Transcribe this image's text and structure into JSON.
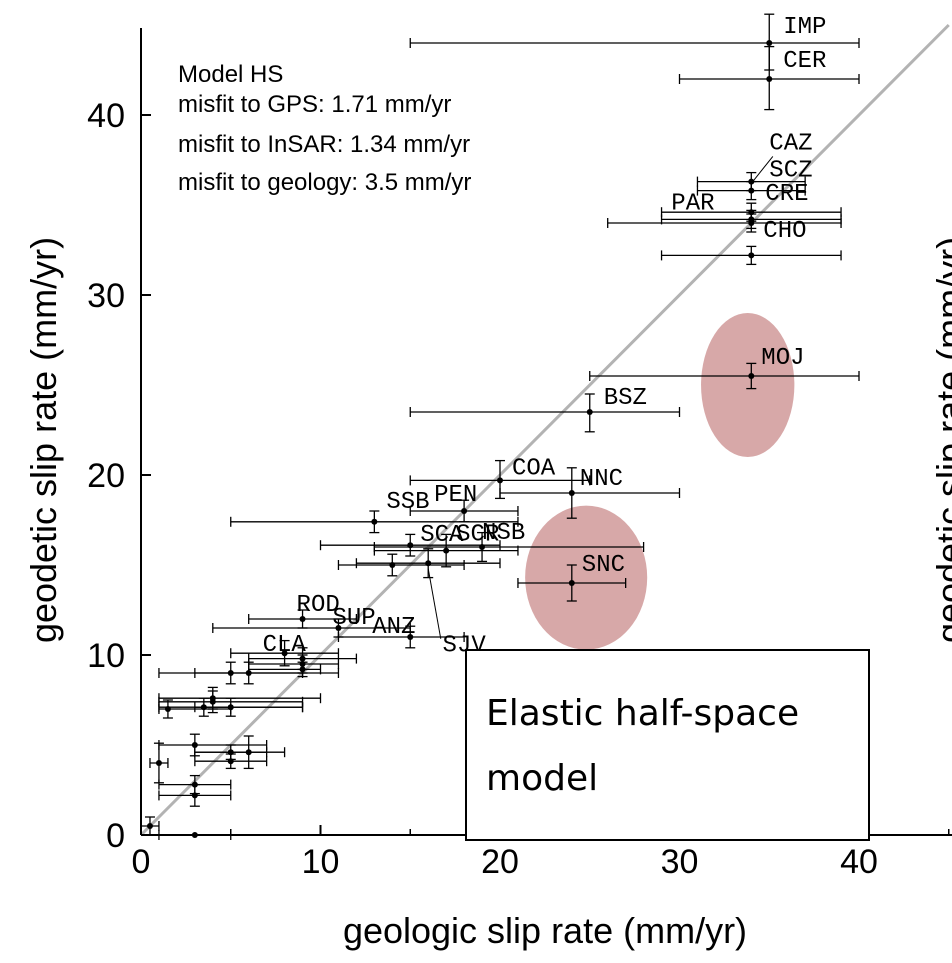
{
  "chart_data": {
    "type": "scatter",
    "xlabel": "geologic slip rate (mm/yr)",
    "ylabel": "geodetic slip rate (mm/yr)",
    "ylabel_clipped": "geodetic slip rate (mm/yr)",
    "xlim": [
      0,
      45
    ],
    "ylim": [
      0,
      45
    ],
    "xticks": [
      0,
      10,
      20,
      30,
      40
    ],
    "yticks": [
      0,
      10,
      20,
      30,
      40
    ],
    "xtick_labels": [
      "0",
      "10",
      "20",
      "30",
      "40"
    ],
    "ytick_labels": [
      "0",
      "10",
      "20",
      "30",
      "40"
    ],
    "reference_line": "y = x",
    "info_lines": [
      "Model HS",
      "misfit to GPS: 1.71 mm/yr",
      "misfit to InSAR: 1.34 mm/yr",
      "misfit to geology:  3.5 mm/yr"
    ],
    "box_lines": [
      "Elastic half-space",
      "model"
    ],
    "highlight_color": "#c98b8b",
    "highlights": [
      {
        "x": 33.8,
        "y": 25.0,
        "rx": 2.6,
        "ry": 4.0
      },
      {
        "x": 24.8,
        "y": 14.3,
        "rx": 3.4,
        "ry": 4.0
      }
    ],
    "points": [
      {
        "x": 35,
        "y": 44,
        "xlo": 15,
        "xhi": 40,
        "ylo": 42.5,
        "yhi": 45.6,
        "label": "IMP"
      },
      {
        "x": 35,
        "y": 42,
        "xlo": 30,
        "xhi": 40,
        "ylo": 40.3,
        "yhi": 43.8,
        "label": "CER"
      },
      {
        "x": 34,
        "y": 36.3,
        "xlo": 31,
        "xhi": 37,
        "ylo": 35.8,
        "yhi": 36.8,
        "label": "CAZ"
      },
      {
        "x": 34,
        "y": 35.8,
        "xlo": 31,
        "xhi": 37,
        "ylo": 35.3,
        "yhi": 36.3,
        "label": "SCZ"
      },
      {
        "x": 34,
        "y": 34.6,
        "xlo": 29,
        "xhi": 39,
        "ylo": 34.1,
        "yhi": 35.1,
        "label": "CRE"
      },
      {
        "x": 34,
        "y": 34.2,
        "xlo": 29,
        "xhi": 39,
        "ylo": 33.7,
        "yhi": 34.7,
        "label": "PAR"
      },
      {
        "x": 34,
        "y": 34.0,
        "xlo": 26,
        "xhi": 39,
        "ylo": 33.5,
        "yhi": 34.5,
        "label": "CHO"
      },
      {
        "x": 34,
        "y": 32.2,
        "xlo": 29,
        "xhi": 39,
        "ylo": 31.7,
        "yhi": 32.7,
        "label": ""
      },
      {
        "x": 34,
        "y": 25.5,
        "xlo": 25,
        "xhi": 40,
        "ylo": 24.8,
        "yhi": 26.2,
        "label": "MOJ"
      },
      {
        "x": 25,
        "y": 23.5,
        "xlo": 15,
        "xhi": 30,
        "ylo": 22.4,
        "yhi": 24.5,
        "label": "BSZ"
      },
      {
        "x": 20,
        "y": 19.7,
        "xlo": 15,
        "xhi": 25,
        "ylo": 18.7,
        "yhi": 20.8,
        "label": "COA"
      },
      {
        "x": 24,
        "y": 19.0,
        "xlo": 20,
        "xhi": 30,
        "ylo": 17.6,
        "yhi": 20.4,
        "label": "NNC"
      },
      {
        "x": 18,
        "y": 18.0,
        "xlo": 15,
        "xhi": 21,
        "ylo": 17.4,
        "yhi": 18.6,
        "label": "PEN"
      },
      {
        "x": 13,
        "y": 17.4,
        "xlo": 5,
        "xhi": 21,
        "ylo": 16.8,
        "yhi": 18.0,
        "label": "SSB"
      },
      {
        "x": 15,
        "y": 16.1,
        "xlo": 10,
        "xhi": 20,
        "ylo": 15.5,
        "yhi": 16.7,
        "label": "SCA"
      },
      {
        "x": 19,
        "y": 16.0,
        "xlo": 13,
        "xhi": 28,
        "ylo": 15.2,
        "yhi": 16.8,
        "label": "NSB"
      },
      {
        "x": 17,
        "y": 15.8,
        "xlo": 13,
        "xhi": 21,
        "ylo": 14.9,
        "yhi": 16.7,
        "label": "SCR"
      },
      {
        "x": 24,
        "y": 14.0,
        "xlo": 21,
        "xhi": 27,
        "ylo": 13.0,
        "yhi": 15.0,
        "label": "SNC"
      },
      {
        "x": 14,
        "y": 15.0,
        "xlo": 11,
        "xhi": 18,
        "ylo": 14.4,
        "yhi": 15.6,
        "label": ""
      },
      {
        "x": 16,
        "y": 15.1,
        "xlo": 12,
        "xhi": 20,
        "ylo": 14.3,
        "yhi": 15.9,
        "label": ""
      },
      {
        "x": 9,
        "y": 12.0,
        "xlo": 6,
        "xhi": 12,
        "ylo": 11.5,
        "yhi": 12.5,
        "label": "ROD"
      },
      {
        "x": 11,
        "y": 11.5,
        "xlo": 4,
        "xhi": 15,
        "ylo": 11.0,
        "yhi": 12.0,
        "label": "SUP"
      },
      {
        "x": 15,
        "y": 11.0,
        "xlo": 11,
        "xhi": 18,
        "ylo": 10.4,
        "yhi": 11.6,
        "label": "ANZ"
      },
      {
        "x": 8,
        "y": 10.1,
        "xlo": 5,
        "xhi": 11,
        "ylo": 9.4,
        "yhi": 10.8,
        "label": "CLA"
      },
      {
        "x": 9,
        "y": 9.8,
        "xlo": 6,
        "xhi": 12,
        "ylo": 9.2,
        "yhi": 10.4,
        "label": ""
      },
      {
        "x": 9,
        "y": 9.5,
        "xlo": 6,
        "xhi": 11,
        "ylo": 9.0,
        "yhi": 10.0,
        "label": ""
      },
      {
        "x": 9,
        "y": 9.2,
        "xlo": 6,
        "xhi": 10,
        "ylo": 8.8,
        "yhi": 9.6,
        "label": ""
      },
      {
        "x": 6,
        "y": 9.0,
        "xlo": 1,
        "xhi": 11,
        "ylo": 8.4,
        "yhi": 9.6,
        "label": ""
      },
      {
        "x": 5,
        "y": 9.0,
        "xlo": 3,
        "xhi": 9,
        "ylo": 8.4,
        "yhi": 9.6,
        "label": ""
      },
      {
        "x": 4,
        "y": 7.6,
        "xlo": 1,
        "xhi": 10,
        "ylo": 7.0,
        "yhi": 8.2,
        "label": ""
      },
      {
        "x": 4,
        "y": 7.4,
        "xlo": 1,
        "xhi": 9,
        "ylo": 6.8,
        "yhi": 8.0,
        "label": ""
      },
      {
        "x": 3.5,
        "y": 7.1,
        "xlo": 1,
        "xhi": 9,
        "ylo": 6.6,
        "yhi": 7.6,
        "label": ""
      },
      {
        "x": 5,
        "y": 7.1,
        "xlo": 3,
        "xhi": 9,
        "ylo": 6.6,
        "yhi": 7.6,
        "label": ""
      },
      {
        "x": 1.5,
        "y": 7.0,
        "xlo": 1,
        "xhi": 5,
        "ylo": 6.5,
        "yhi": 7.5,
        "label": ""
      },
      {
        "x": 3,
        "y": 5.0,
        "xlo": 1,
        "xhi": 7,
        "ylo": 4.4,
        "yhi": 5.6,
        "label": ""
      },
      {
        "x": 5,
        "y": 4.6,
        "xlo": 3,
        "xhi": 7,
        "ylo": 4.2,
        "yhi": 5.0,
        "label": ""
      },
      {
        "x": 6,
        "y": 4.6,
        "xlo": 3,
        "xhi": 8,
        "ylo": 3.7,
        "yhi": 5.5,
        "label": ""
      },
      {
        "x": 5,
        "y": 4.1,
        "xlo": 3,
        "xhi": 7,
        "ylo": 3.7,
        "yhi": 4.5,
        "label": ""
      },
      {
        "x": 1,
        "y": 4.0,
        "xlo": 0.5,
        "xhi": 1.5,
        "ylo": 2.9,
        "yhi": 5.1,
        "label": ""
      },
      {
        "x": 3,
        "y": 2.8,
        "xlo": 1,
        "xhi": 5,
        "ylo": 2.3,
        "yhi": 3.3,
        "label": ""
      },
      {
        "x": 3,
        "y": 2.2,
        "xlo": 1,
        "xhi": 5,
        "ylo": 1.6,
        "yhi": 2.8,
        "label": ""
      },
      {
        "x": 0.5,
        "y": 0.5,
        "xlo": 0,
        "xhi": 1,
        "ylo": 0,
        "yhi": 1,
        "label": ""
      },
      {
        "x": 3,
        "y": 0.0,
        "xlo": 1,
        "xhi": 5,
        "ylo": 0,
        "yhi": 0,
        "label": ""
      }
    ],
    "label_offsets_note": ""
  }
}
